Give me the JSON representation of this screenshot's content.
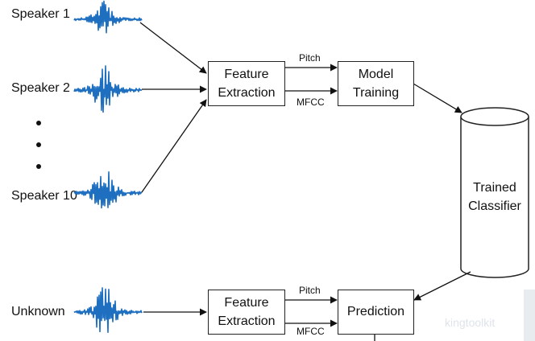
{
  "speakers": {
    "s1": "Speaker 1",
    "s2": "Speaker 2",
    "s10": "Speaker 10",
    "unknown": "Unknown"
  },
  "top_feature_box": {
    "line1": "Feature",
    "line2": "Extraction"
  },
  "bottom_feature_box": {
    "line1": "Feature",
    "line2": "Extraction"
  },
  "model_box": {
    "line1": "Model",
    "line2": "Training"
  },
  "prediction_box": {
    "label": "Prediction"
  },
  "classifier": {
    "line1": "Trained",
    "line2": "Classifier"
  },
  "features": {
    "top_pitch": "Pitch",
    "top_mfcc": "MFCC",
    "bottom_pitch": "Pitch",
    "bottom_mfcc": "MFCC"
  },
  "watermark": {
    "text": "kingtoolkit"
  },
  "colors": {
    "waveform": "#1f6fc0",
    "stroke": "#222222"
  }
}
